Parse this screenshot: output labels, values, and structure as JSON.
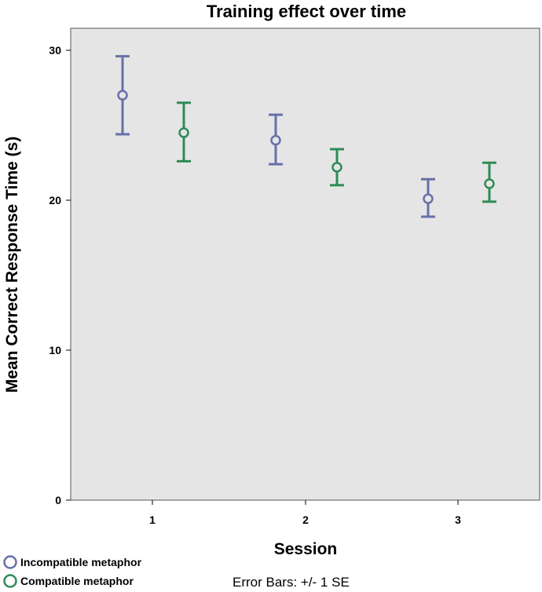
{
  "chart_data": {
    "type": "scatter",
    "title": "Training effect over time",
    "xlabel": "Session",
    "ylabel": "Mean Correct Response Time (s)",
    "categories": [
      "1",
      "2",
      "3"
    ],
    "ylim": [
      0,
      32
    ],
    "yticks": [
      0,
      10,
      20,
      30
    ],
    "grid": false,
    "error_bar_note": "Error Bars: +/- 1 SE",
    "legend_position": "bottom-left",
    "series": [
      {
        "name": "Incompatible metaphor",
        "color": "#6670a8",
        "values": [
          27.0,
          24.0,
          20.1
        ],
        "lower": [
          24.4,
          22.4,
          18.9
        ],
        "upper": [
          29.6,
          25.7,
          21.4
        ]
      },
      {
        "name": "Compatible metaphor",
        "color": "#2e8b57",
        "values": [
          24.5,
          22.2,
          21.1
        ],
        "lower": [
          22.6,
          21.0,
          19.9
        ],
        "upper": [
          26.5,
          23.4,
          22.5
        ]
      }
    ]
  }
}
